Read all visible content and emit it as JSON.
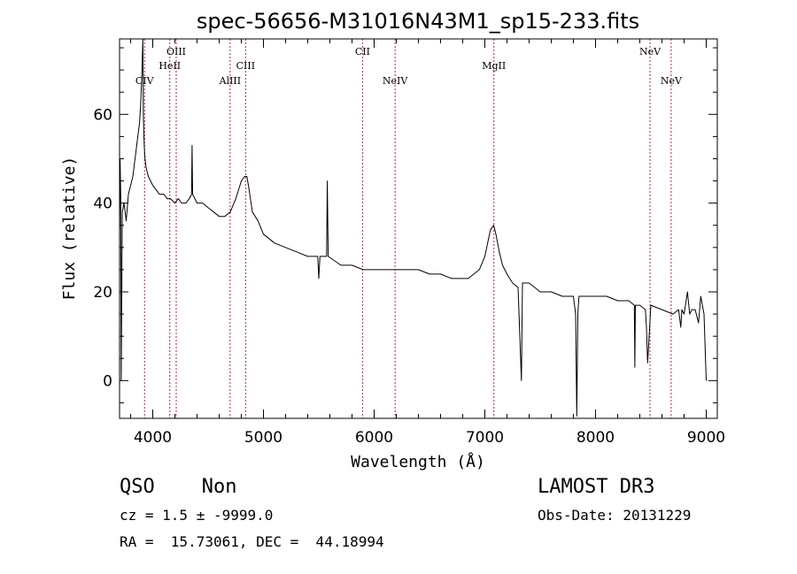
{
  "chart_data": {
    "type": "line",
    "title": "spec-56656-M31016N43M1_sp15-233.fits",
    "xlabel": "Wavelength (Å)",
    "ylabel": "Flux (relative)",
    "xlim": [
      3700,
      9100
    ],
    "ylim": [
      -8.5,
      77
    ],
    "xticks": [
      4000,
      5000,
      6000,
      7000,
      8000,
      9000
    ],
    "yticks": [
      0,
      20,
      40,
      60
    ],
    "series": [
      {
        "name": "spectrum",
        "x": [
          3700,
          3705,
          3710,
          3715,
          3725,
          3740,
          3760,
          3780,
          3800,
          3820,
          3840,
          3860,
          3880,
          3890,
          3900,
          3910,
          3915,
          3920,
          3925,
          3930,
          3940,
          3950,
          3960,
          3980,
          4000,
          4030,
          4060,
          4100,
          4130,
          4160,
          4200,
          4230,
          4260,
          4300,
          4330,
          4350,
          4355,
          4360,
          4400,
          4450,
          4500,
          4550,
          4600,
          4650,
          4700,
          4750,
          4800,
          4830,
          4850,
          4870,
          4900,
          4950,
          5000,
          5050,
          5100,
          5200,
          5300,
          5400,
          5490,
          5500,
          5510,
          5570,
          5577,
          5585,
          5700,
          5800,
          5900,
          6000,
          6100,
          6200,
          6300,
          6400,
          6500,
          6600,
          6700,
          6800,
          6850,
          6900,
          6950,
          7000,
          7050,
          7080,
          7100,
          7130,
          7160,
          7200,
          7250,
          7300,
          7330,
          7340,
          7350,
          7400,
          7450,
          7500,
          7600,
          7700,
          7800,
          7820,
          7830,
          7840,
          7850,
          7900,
          8000,
          8100,
          8200,
          8300,
          8350,
          8355,
          8360,
          8400,
          8450,
          8460,
          8470,
          8500,
          8600,
          8700,
          8750,
          8770,
          8780,
          8800,
          8830,
          8850,
          8870,
          8900,
          8930,
          8950,
          8980,
          9000
        ],
        "values": [
          33,
          50,
          42,
          0,
          38,
          40,
          36,
          42,
          44,
          46,
          50,
          54,
          58,
          62,
          68,
          77,
          60,
          55,
          52,
          50,
          48,
          47,
          46,
          45,
          44,
          43,
          42,
          42,
          41,
          41,
          40,
          41,
          40,
          40,
          41,
          42,
          53,
          42,
          40,
          40,
          39,
          38,
          37,
          37,
          38,
          41,
          45,
          46,
          46,
          43,
          38,
          36,
          33,
          32,
          31,
          30,
          29,
          28,
          28,
          23,
          28,
          28,
          45,
          28,
          26,
          26,
          25,
          25,
          25,
          25,
          25,
          25,
          24,
          24,
          23,
          23,
          23,
          24,
          25,
          28,
          34,
          35,
          33,
          29,
          26,
          24,
          22,
          21,
          0,
          22,
          22,
          22,
          21,
          20,
          20,
          19,
          19,
          15,
          -8,
          15,
          19,
          19,
          19,
          19,
          18,
          18,
          17,
          3,
          17,
          17,
          16,
          12,
          4,
          17,
          16,
          15,
          16,
          12,
          16,
          15,
          20,
          15,
          16,
          16,
          13,
          19,
          15,
          0
        ]
      }
    ],
    "lines": [
      {
        "label": "CIV",
        "x": 3926,
        "tier": 3
      },
      {
        "label": "HeII",
        "x": 4154,
        "tier": 2
      },
      {
        "label": "OIII",
        "x": 4212,
        "tier": 1
      },
      {
        "label": "AlIII",
        "x": 4699,
        "tier": 3
      },
      {
        "label": "CIII",
        "x": 4839,
        "tier": 2
      },
      {
        "label": "CII",
        "x": 5895,
        "tier": 1
      },
      {
        "label": "NeIV",
        "x": 6189,
        "tier": 3
      },
      {
        "label": "MgII",
        "x": 7082,
        "tier": 2
      },
      {
        "label": "NeV",
        "x": 8492,
        "tier": 1
      },
      {
        "label": "NeV",
        "x": 8683,
        "tier": 3
      }
    ]
  },
  "info": {
    "class": "QSO",
    "subclass": "Non",
    "survey": "LAMOST DR3",
    "redshift": "cz = 1.5 ± -9999.0",
    "obs_date": "Obs-Date: 20131229",
    "coords": "RA =  15.73061, DEC =  44.18994"
  }
}
